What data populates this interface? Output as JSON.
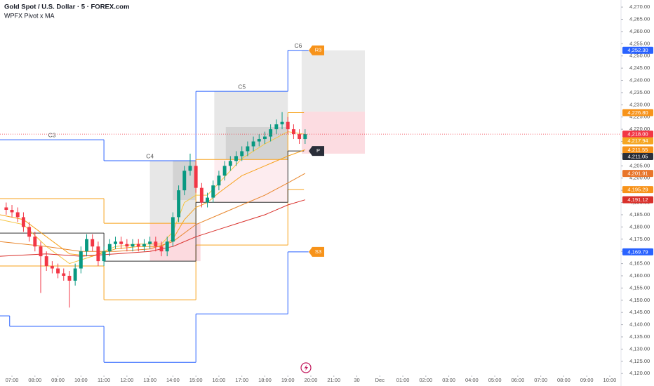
{
  "chart_data": {
    "type": "candlestick",
    "title": "Gold Spot / U.S. Dollar · 5 · FOREX.com",
    "subtitle": "WPFX Pivot x MA",
    "grid": false,
    "xlim": [
      -0.52,
      26.49
    ],
    "ylim": [
      4119.2,
      4272.9
    ],
    "xticks": [
      {
        "value": 0,
        "label": "07:00"
      },
      {
        "value": 1,
        "label": "08:00"
      },
      {
        "value": 2,
        "label": "09:00"
      },
      {
        "value": 3,
        "label": "10:00"
      },
      {
        "value": 4,
        "label": "11:00"
      },
      {
        "value": 5,
        "label": "12:00"
      },
      {
        "value": 6,
        "label": "13:00"
      },
      {
        "value": 7,
        "label": "14:00"
      },
      {
        "value": 8,
        "label": "15:00"
      },
      {
        "value": 9,
        "label": "16:00"
      },
      {
        "value": 10,
        "label": "17:00"
      },
      {
        "value": 11,
        "label": "18:00"
      },
      {
        "value": 12,
        "label": "19:00"
      },
      {
        "value": 13,
        "label": "20:00"
      },
      {
        "value": 14,
        "label": "21:00"
      },
      {
        "value": 15,
        "label": "30"
      },
      {
        "value": 16,
        "label": "Dec"
      },
      {
        "value": 17,
        "label": "01:00"
      },
      {
        "value": 18,
        "label": "02:00"
      },
      {
        "value": 19,
        "label": "03:00"
      },
      {
        "value": 20,
        "label": "04:00"
      },
      {
        "value": 21,
        "label": "05:00"
      },
      {
        "value": 22,
        "label": "06:00"
      },
      {
        "value": 23,
        "label": "07:00"
      },
      {
        "value": 24,
        "label": "08:00"
      },
      {
        "value": 25,
        "label": "09:00"
      },
      {
        "value": 26,
        "label": "10:00"
      }
    ],
    "yticks": [
      {
        "value": 4120,
        "label": "4,120.00"
      },
      {
        "value": 4125,
        "label": "4,125.00"
      },
      {
        "value": 4130,
        "label": "4,130.00"
      },
      {
        "value": 4135,
        "label": "4,135.00"
      },
      {
        "value": 4140,
        "label": "4,140.00"
      },
      {
        "value": 4145,
        "label": "4,145.00"
      },
      {
        "value": 4150,
        "label": "4,150.00"
      },
      {
        "value": 4155,
        "label": "4,155.00"
      },
      {
        "value": 4160,
        "label": "4,160.00"
      },
      {
        "value": 4165,
        "label": "4,165.00"
      },
      {
        "value": 4170,
        "label": "4,170.00"
      },
      {
        "value": 4175,
        "label": "4,175.00"
      },
      {
        "value": 4180,
        "label": "4,180.00"
      },
      {
        "value": 4185,
        "label": "4,185.00"
      },
      {
        "value": 4190,
        "label": "4,190.00"
      },
      {
        "value": 4195,
        "label": "4,195.00"
      },
      {
        "value": 4200,
        "label": "4,200.00"
      },
      {
        "value": 4205,
        "label": "4,205.00"
      },
      {
        "value": 4210,
        "label": "4,210.00"
      },
      {
        "value": 4215,
        "label": "4,215.00"
      },
      {
        "value": 4220,
        "label": "4,220.00"
      },
      {
        "value": 4225,
        "label": "4,225.00"
      },
      {
        "value": 4230,
        "label": "4,230.00"
      },
      {
        "value": 4235,
        "label": "4,235.00"
      },
      {
        "value": 4240,
        "label": "4,240.00"
      },
      {
        "value": 4245,
        "label": "4,245.00"
      },
      {
        "value": 4250,
        "label": "4,250.00"
      },
      {
        "value": 4255,
        "label": "4,255.00"
      },
      {
        "value": 4260,
        "label": "4,260.00"
      },
      {
        "value": 4265,
        "label": "4,265.00"
      },
      {
        "value": 4270,
        "label": "4,270.00"
      }
    ],
    "up_color": "#089981",
    "down_color": "#f23645",
    "x": [
      -0.25,
      0,
      0.25,
      0.5,
      0.75,
      1,
      1.25,
      1.5,
      1.75,
      2,
      2.25,
      2.5,
      2.75,
      3,
      3.25,
      3.5,
      3.75,
      4,
      4.25,
      4.5,
      4.75,
      5,
      5.25,
      5.5,
      5.75,
      6,
      6.25,
      6.5,
      6.75,
      7,
      7.25,
      7.5,
      7.75,
      8,
      8.25,
      8.5,
      8.75,
      9,
      9.25,
      9.5,
      9.75,
      10,
      10.25,
      10.5,
      10.75,
      11,
      11.25,
      11.5,
      11.75,
      12,
      12.25,
      12.5,
      12.75
    ],
    "open": [
      4188,
      4187,
      4186,
      4184,
      4180,
      4176,
      4172,
      4168,
      4164,
      4163,
      4161,
      4160,
      4158,
      4163,
      4170,
      4175,
      4172,
      4166,
      4170,
      4173,
      4174,
      4173,
      4172,
      4173,
      4172,
      4173,
      4174,
      4172,
      4170,
      4174,
      4184,
      4195,
      4203,
      4205,
      4196,
      4190,
      4192,
      4197,
      4201,
      4205,
      4207,
      4209,
      4211,
      4213,
      4215,
      4216,
      4217,
      4220,
      4222,
      4223,
      4220,
      4218,
      4216
    ],
    "high": [
      4190,
      4189,
      4188,
      4186,
      4182,
      4178,
      4174,
      4170,
      4166,
      4165,
      4163,
      4162,
      4165,
      4172,
      4177,
      4177,
      4174,
      4172,
      4175,
      4176,
      4176,
      4175,
      4175,
      4175,
      4175,
      4176,
      4176,
      4174,
      4176,
      4186,
      4197,
      4205,
      4210,
      4207,
      4198,
      4194,
      4199,
      4203,
      4207,
      4209,
      4211,
      4213,
      4215,
      4217,
      4218,
      4219,
      4222,
      4224,
      4227,
      4225,
      4222,
      4220,
      4220
    ],
    "low": [
      4185,
      4184,
      4182,
      4178,
      4174,
      4170,
      4153,
      4162,
      4161,
      4159,
      4158,
      4147,
      4156,
      4161,
      4168,
      4170,
      4164,
      4164,
      4168,
      4171,
      4171,
      4170,
      4170,
      4170,
      4170,
      4171,
      4170,
      4168,
      4168,
      4172,
      4182,
      4193,
      4201,
      4194,
      4188,
      4188,
      4190,
      4195,
      4199,
      4203,
      4205,
      4207,
      4209,
      4211,
      4213,
      4214,
      4215,
      4218,
      4220,
      4218,
      4216,
      4214,
      4214
    ],
    "close": [
      4187,
      4186,
      4184,
      4180,
      4176,
      4172,
      4168,
      4164,
      4163,
      4161,
      4160,
      4158,
      4163,
      4170,
      4175,
      4172,
      4166,
      4170,
      4173,
      4174,
      4173,
      4172,
      4173,
      4172,
      4173,
      4174,
      4172,
      4170,
      4174,
      4184,
      4195,
      4203,
      4205,
      4196,
      4190,
      4192,
      4197,
      4201,
      4205,
      4207,
      4209,
      4211,
      4213,
      4215,
      4216,
      4217,
      4220,
      4222,
      4223,
      4220,
      4218,
      4216,
      4218
    ],
    "series": [
      {
        "color": "#f5c542",
        "x": [
          -0.52,
          0.5,
          1.5,
          2.5,
          3.5,
          4.5,
          5.5,
          6.5,
          7,
          7.5,
          8,
          8.5,
          9,
          10,
          11,
          12,
          12.75
        ],
        "values": [
          4183,
          4181,
          4172,
          4165,
          4168,
          4172,
          4173,
          4173,
          4178,
          4190,
          4193,
          4193,
          4198,
          4208,
          4214,
          4219,
          4217.9
        ]
      },
      {
        "color": "#f7a21b",
        "x": [
          -0.52,
          0.5,
          1.5,
          2.5,
          3.5,
          4.5,
          5.5,
          6.5,
          7,
          7.5,
          8,
          8.5,
          9,
          10,
          11,
          12,
          12.75
        ],
        "values": [
          4185,
          4183,
          4176,
          4169,
          4168,
          4171,
          4172,
          4172,
          4175,
          4183,
          4188,
          4190,
          4194,
          4201,
          4205,
          4209,
          4211.6
        ]
      },
      {
        "color": "#e8852b",
        "x": [
          -0.52,
          1.5,
          3,
          4.5,
          6,
          7,
          8,
          9,
          10,
          11,
          12,
          12.75
        ],
        "values": [
          4174,
          4172,
          4170,
          4170,
          4171,
          4174,
          4181,
          4185,
          4189,
          4193,
          4198,
          4201.9
        ]
      },
      {
        "color": "#d9302b",
        "x": [
          -0.52,
          1.5,
          3,
          4.5,
          6,
          7,
          8,
          9,
          10,
          11,
          12,
          12.75
        ],
        "values": [
          4168,
          4169,
          4168,
          4169,
          4170,
          4172,
          4176,
          4179,
          4182,
          4185,
          4189,
          4191.1
        ]
      }
    ],
    "zones": [
      {
        "color": "#e3e3e3",
        "x0": 6,
        "x1": 8,
        "top": 4207.1,
        "bottom": 4181.5
      },
      {
        "color": "#cfcfcf",
        "x0": 7,
        "x1": 8,
        "top": 4207.1,
        "bottom": 4191
      },
      {
        "color": "#fbd3d9",
        "x0": 6,
        "x1": 8.2,
        "top": 4181.5,
        "bottom": 4166
      },
      {
        "color": "#e3e3e3",
        "x0": 8.8,
        "x1": 12,
        "top": 4235.5,
        "bottom": 4207.6
      },
      {
        "color": "#cfcfcf",
        "x0": 9.3,
        "x1": 12,
        "top": 4220.9,
        "bottom": 4207.6
      },
      {
        "color": "#fde9ec",
        "x0": 8.8,
        "x1": 12,
        "top": 4207.6,
        "bottom": 4190.1
      },
      {
        "color": "#e6e6e6",
        "x0": 12.6,
        "x1": 15.35,
        "top": 4252.3,
        "bottom": 4227.2
      },
      {
        "color": "#fcd6dc",
        "x0": 12.6,
        "x1": 15.35,
        "top": 4227.2,
        "bottom": 4210
      }
    ],
    "levels": [
      {
        "color": "#2962ff",
        "segments": [
          [
            -0.52,
            4,
            4215.7
          ],
          [
            4,
            8,
            4207.1
          ],
          [
            8,
            12,
            4235.5
          ],
          [
            12,
            12.9,
            4252.3
          ]
        ],
        "segment_labels": [
          "C3",
          "C4",
          "C5",
          "C6"
        ],
        "tag": "R3",
        "tag_color": "#f7931a"
      },
      {
        "color": "#2962ff",
        "segments": [
          [
            -0.52,
            -0.1,
            4143.6
          ],
          [
            -0.1,
            4,
            4139.3
          ],
          [
            4,
            8,
            4124.6
          ],
          [
            8,
            12,
            4144.4
          ],
          [
            12,
            12.9,
            4169.8
          ]
        ],
        "tag": "S3",
        "tag_color": "#f7931a"
      },
      {
        "color": "#f7a21b",
        "segments": [
          [
            -0.52,
            4,
            4191.6
          ],
          [
            4,
            8,
            4181.5
          ],
          [
            8,
            12,
            4207.6
          ],
          [
            12,
            12.7,
            4226.8
          ]
        ]
      },
      {
        "color": "#f7a21b",
        "segments": [
          [
            -0.52,
            4,
            4164
          ],
          [
            4,
            8,
            4150.2
          ],
          [
            8,
            12,
            4172.6
          ],
          [
            12,
            12.7,
            4195.3
          ]
        ]
      },
      {
        "color": "#333333",
        "segments": [
          [
            -0.52,
            4,
            4177.5
          ],
          [
            4,
            8,
            4166
          ],
          [
            8,
            12,
            4190.1
          ],
          [
            12,
            12.7,
            4211.1
          ]
        ],
        "tag": "P",
        "tag_color": "#2a2e39"
      }
    ],
    "last_price": 4218.0,
    "price_labels": [
      {
        "value": 4252.3,
        "label": "4,252.30",
        "color": "#2962ff"
      },
      {
        "value": 4226.8,
        "label": "4,226.80",
        "color": "#f7931a"
      },
      {
        "value": 4218.0,
        "label": "4,218.00",
        "color": "#f23645"
      },
      {
        "value": 4217.94,
        "label": "4,217.94",
        "color": "#f5a623"
      },
      {
        "value": 4211.55,
        "label": "4,211.55",
        "color": "#f7931a"
      },
      {
        "value": 4211.05,
        "label": "4,211.05",
        "color": "#2a2e39"
      },
      {
        "value": 4201.91,
        "label": "4,201.91",
        "color": "#e8752b"
      },
      {
        "value": 4195.29,
        "label": "4,195.29",
        "color": "#f7931a"
      },
      {
        "value": 4191.12,
        "label": "4,191.12",
        "color": "#d9302b"
      },
      {
        "value": 4169.79,
        "label": "4,169.79",
        "color": "#2962ff"
      }
    ]
  }
}
